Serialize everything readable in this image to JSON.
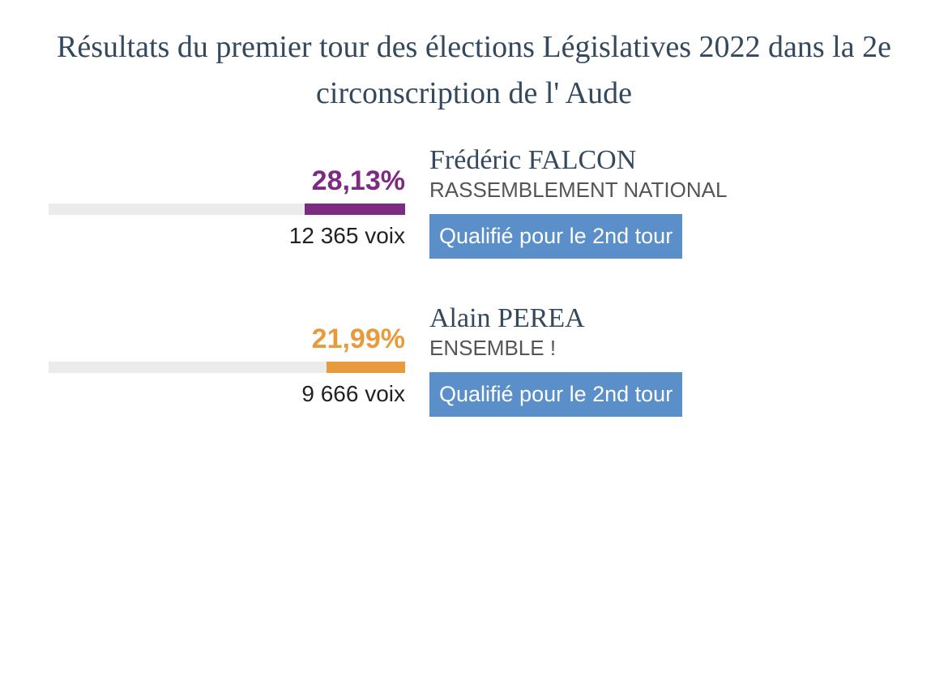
{
  "title": "Résultats du premier tour des élections Législatives 2022 dans la 2e circonscription de l' Aude",
  "title_color": "#34495e",
  "title_fontsize": 38,
  "bar_track_color": "#ebebeb",
  "badge_background": "#5a8fc9",
  "badge_text_color": "#ffffff",
  "candidates": [
    {
      "name": "Frédéric FALCON",
      "party": "RASSEMBLEMENT NATIONAL",
      "percentage": "28,13%",
      "percentage_value": 28.13,
      "votes": "12 365 voix",
      "color": "#7d2a82",
      "bar_fill_percent": 28.13,
      "badge": "Qualifié pour le 2nd tour"
    },
    {
      "name": "Alain PEREA",
      "party": "ENSEMBLE !",
      "percentage": "21,99%",
      "percentage_value": 21.99,
      "votes": "9 666 voix",
      "color": "#e89b3c",
      "bar_fill_percent": 21.99,
      "badge": "Qualifié pour le 2nd tour"
    }
  ]
}
